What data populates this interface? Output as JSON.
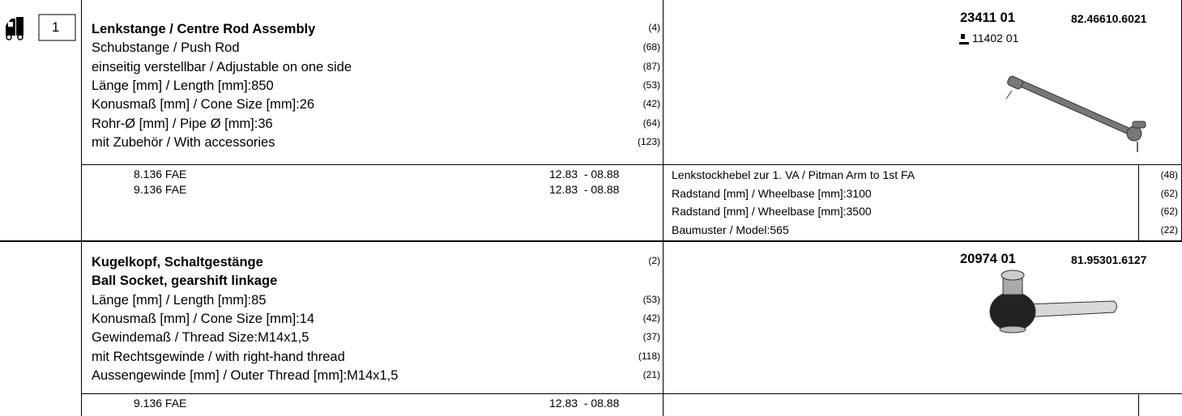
{
  "position": "1",
  "items": [
    {
      "part_no": "23411 01",
      "oe_no": "82.46610.6021",
      "ref_no": "11402 01",
      "titles": [
        {
          "text": "Lenkstange / Centre Rod Assembly",
          "code": "(4)"
        }
      ],
      "lines": [
        {
          "text": "Schubstange / Push Rod",
          "code": "(68)"
        },
        {
          "text": "einseitig verstellbar / Adjustable on one side",
          "code": "(87)"
        },
        {
          "text": "Länge [mm] / Length [mm]:850",
          "code": "(53)"
        },
        {
          "text": "Konusmaß [mm] / Cone Size [mm]:26",
          "code": "(42)"
        },
        {
          "text": "Rohr-Ø [mm] / Pipe Ø [mm]:36",
          "code": "(64)"
        },
        {
          "text": "mit Zubehör / With accessories",
          "code": "(123)"
        }
      ],
      "vehicles": [
        {
          "model": "8.136 FAE",
          "period": "12.83  - 08.88"
        },
        {
          "model": "9.136 FAE",
          "period": "12.83  - 08.88"
        }
      ],
      "notes": [
        {
          "text": "Lenkstockhebel zur 1. VA / Pitman Arm to 1st FA",
          "code": "(48)"
        },
        {
          "text": "Radstand [mm] / Wheelbase [mm]:3100",
          "code": "(62)"
        },
        {
          "text": "Radstand [mm] / Wheelbase [mm]:3500",
          "code": "(62)"
        },
        {
          "text": "Baumuster / Model:565",
          "code": "(22)"
        }
      ]
    },
    {
      "part_no": "20974 01",
      "oe_no": "81.95301.6127",
      "titles": [
        {
          "text": "Kugelkopf, Schaltgestänge",
          "code": "(2)"
        },
        {
          "text": "Ball Socket, gearshift linkage"
        }
      ],
      "lines": [
        {
          "text": "Länge [mm] / Length [mm]:85",
          "code": "(53)"
        },
        {
          "text": "Konusmaß [mm] / Cone Size [mm]:14",
          "code": "(42)"
        },
        {
          "text": "Gewindemaß / Thread Size:M14x1,5",
          "code": "(37)"
        },
        {
          "text": "mit Rechtsgewinde / with right-hand thread",
          "code": "(118)"
        },
        {
          "text": "Aussengewinde [mm] / Outer Thread [mm]:M14x1,5",
          "code": "(21)"
        }
      ],
      "vehicles": [
        {
          "model": "9.136 FAE",
          "period": "12.83  - 08.88"
        }
      ],
      "notes": []
    }
  ]
}
